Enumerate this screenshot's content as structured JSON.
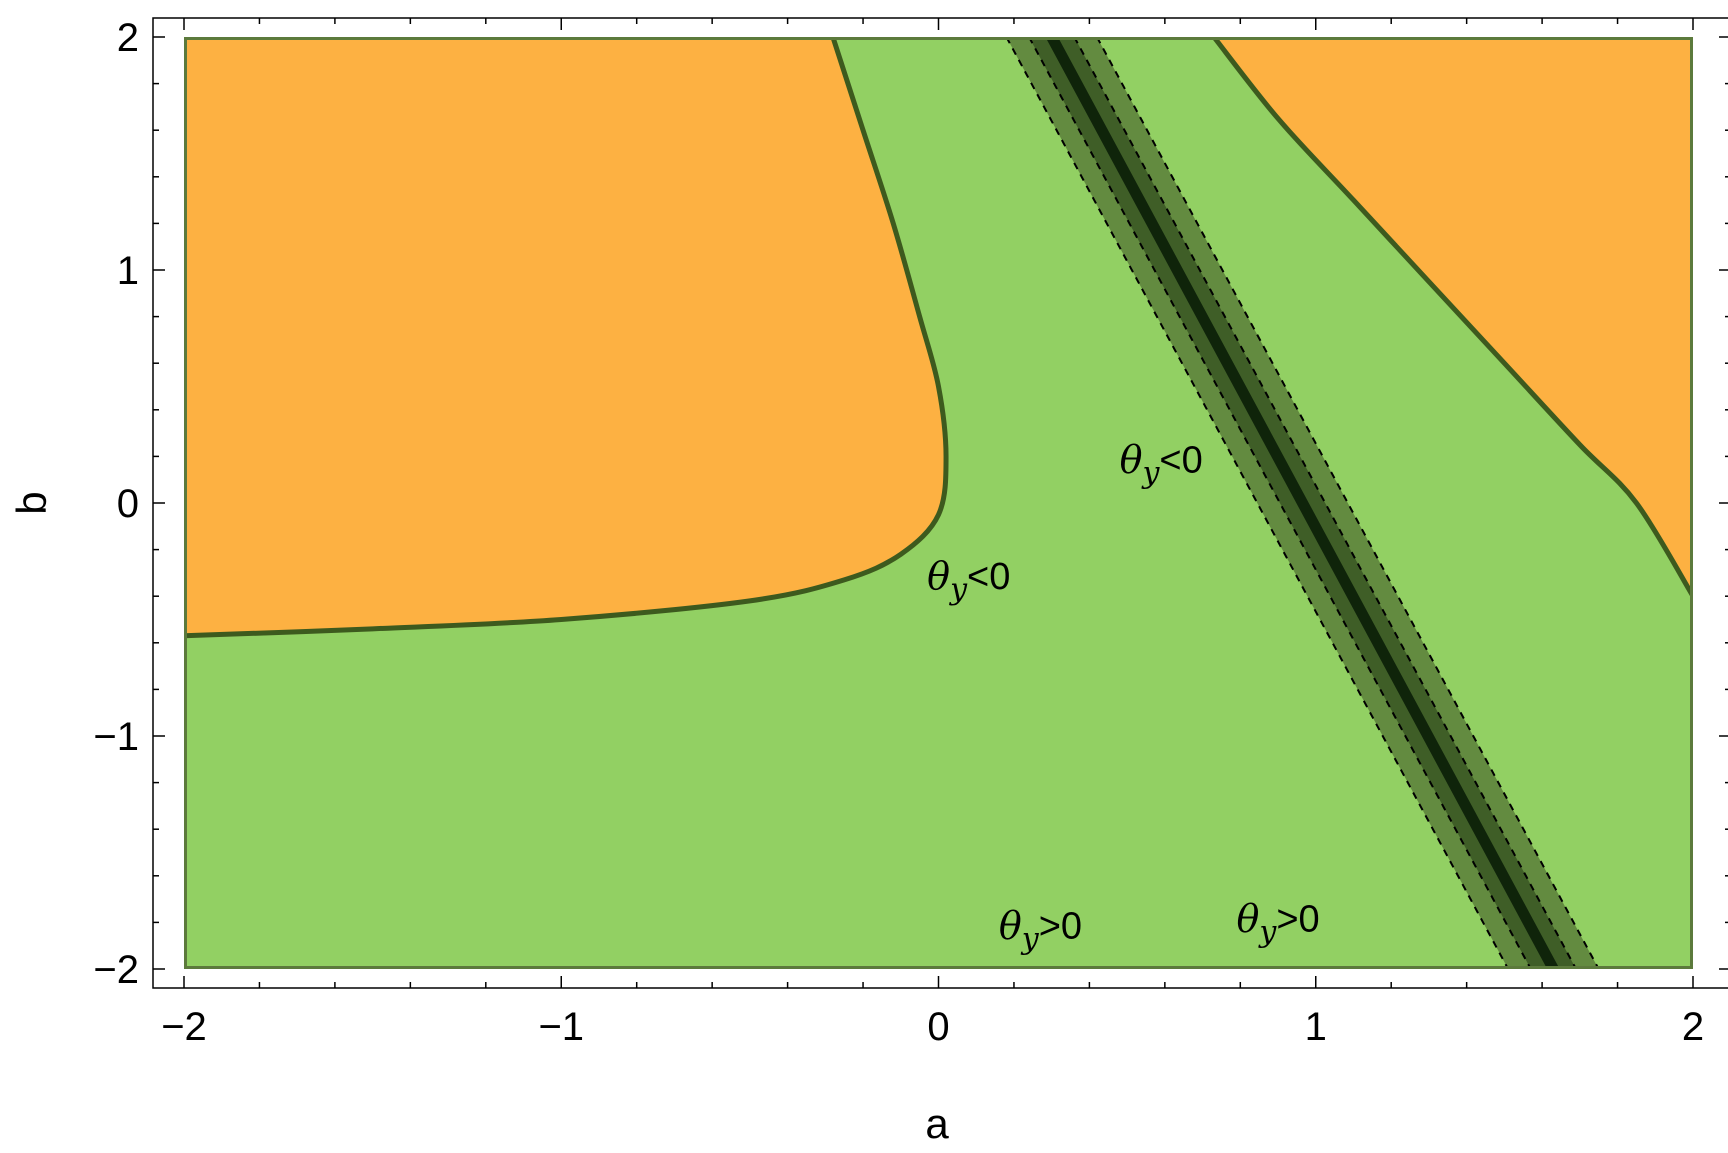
{
  "chart_data": {
    "type": "contour",
    "xlabel": "a",
    "ylabel": "b",
    "xlim": [
      -2,
      2
    ],
    "ylim": [
      -2,
      2
    ],
    "xticks": [
      -2,
      -1,
      0,
      1,
      2
    ],
    "yticks": [
      -2,
      -1,
      0,
      1,
      2
    ],
    "xtick_labels": [
      "−2",
      "−1",
      "0",
      "1",
      "2"
    ],
    "ytick_labels": [
      "−2",
      "−1",
      "0",
      "1",
      "2"
    ],
    "grid": false,
    "colors": {
      "green_region": "#92d063",
      "orange_region": "#fdb142",
      "band_outer": "#5a7f3a",
      "band_inner": "#3f5e27",
      "center_line": "#0f240a",
      "boundary": "#3d5a1e",
      "frame": "#5c7a3c"
    },
    "regions": [
      {
        "fill": "orange",
        "boundary": [
          [
            -2.0,
            -0.57
          ],
          [
            -1.5,
            -0.54
          ],
          [
            -1.0,
            -0.5
          ],
          [
            -0.5,
            -0.42
          ],
          [
            -0.25,
            -0.33
          ],
          [
            -0.1,
            -0.22
          ],
          [
            0.0,
            -0.05
          ],
          [
            0.02,
            0.2
          ],
          [
            0.0,
            0.5
          ],
          [
            -0.05,
            0.8
          ],
          [
            -0.12,
            1.2
          ],
          [
            -0.2,
            1.6
          ],
          [
            -0.28,
            2.0
          ]
        ]
      },
      {
        "fill": "orange",
        "boundary": [
          [
            0.73,
            2.0
          ],
          [
            0.9,
            1.65
          ],
          [
            1.1,
            1.3
          ],
          [
            1.3,
            0.95
          ],
          [
            1.5,
            0.6
          ],
          [
            1.7,
            0.25
          ],
          [
            1.85,
            0.0
          ],
          [
            2.0,
            -0.4
          ]
        ]
      }
    ],
    "band": {
      "center_line": [
        [
          0.3,
          2.0
        ],
        [
          1.63,
          -2.0
        ]
      ],
      "inner_halfwidth": 0.06,
      "outer_halfwidth": 0.12,
      "dashed_halfwidth": 0.12
    },
    "annotations": [
      {
        "text": "θ",
        "sub": "y",
        "rel": "<0",
        "a": 0.48,
        "b": 0.13
      },
      {
        "text": "θ",
        "sub": "y",
        "rel": "<0",
        "a": -0.03,
        "b": -0.37
      },
      {
        "text": "θ",
        "sub": "y",
        "rel": ">0",
        "a": 0.16,
        "b": -1.87
      },
      {
        "text": "θ",
        "sub": "y",
        "rel": ">0",
        "a": 0.79,
        "b": -1.84
      }
    ]
  }
}
